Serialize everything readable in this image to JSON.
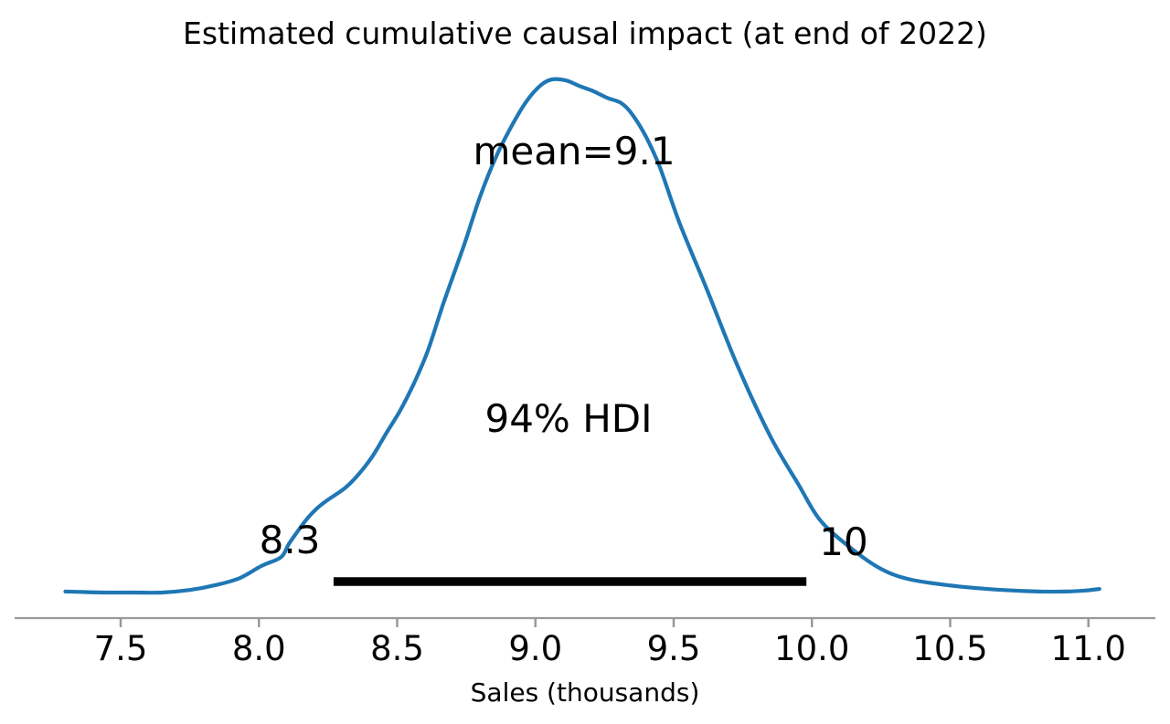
{
  "header": {
    "title": "Estimated cumulative causal impact (at end of 2022)"
  },
  "annotations": {
    "mean_label": "mean=9.1",
    "hdi_prob_label": "94% HDI",
    "hdi_lower_label": "8.3",
    "hdi_upper_label": "10"
  },
  "axis": {
    "xlabel": "Sales (thousands)"
  },
  "chart_data": {
    "type": "line",
    "subtype": "kde-posterior-density",
    "title": "Estimated cumulative causal impact (at end of 2022)",
    "xlabel": "Sales (thousands)",
    "ylabel": "",
    "grid": false,
    "legend": "none",
    "xlim": [
      7.11,
      11.23
    ],
    "x_tick_values": [
      7.5,
      8.0,
      8.5,
      9.0,
      9.5,
      10.0,
      10.5,
      11.0
    ],
    "x_tick_labels": [
      "7.5",
      "8.0",
      "8.5",
      "9.0",
      "9.5",
      "10.0",
      "10.5",
      "11.0"
    ],
    "mean": 9.1,
    "mean_label": "mean=9.1",
    "hdi_prob": 0.94,
    "hdi_prob_label": "94% HDI",
    "hdi_interval": [
      8.3,
      10
    ],
    "hdi_lower_label": "8.3",
    "hdi_upper_label": "10",
    "hdi_bar_span": [
      8.27,
      9.98
    ],
    "line_color": "#1f77b4",
    "hdi_bar_color": "#000000",
    "axis_color": "#999999",
    "text_color": "#000000",
    "curve": {
      "x": [
        7.3,
        7.36,
        7.45,
        7.55,
        7.65,
        7.75,
        7.84,
        7.93,
        8.01,
        8.08,
        8.11,
        8.17,
        8.21,
        8.25,
        8.31,
        8.36,
        8.41,
        8.46,
        8.51,
        8.56,
        8.61,
        8.67,
        8.74,
        8.8,
        8.86,
        8.92,
        8.97,
        9.02,
        9.06,
        9.11,
        9.16,
        9.21,
        9.26,
        9.31,
        9.35,
        9.4,
        9.45,
        9.52,
        9.62,
        9.73,
        9.85,
        9.95,
        10.03,
        10.14,
        10.25,
        10.36,
        10.53,
        10.69,
        10.82,
        10.92,
        10.99,
        11.04
      ],
      "density_normalized": [
        0.002,
        0.001,
        0.0,
        0.0,
        0.0,
        0.005,
        0.014,
        0.028,
        0.052,
        0.069,
        0.096,
        0.141,
        0.164,
        0.181,
        0.203,
        0.23,
        0.265,
        0.31,
        0.354,
        0.407,
        0.47,
        0.568,
        0.674,
        0.772,
        0.852,
        0.915,
        0.959,
        0.989,
        1.0,
        0.998,
        0.987,
        0.977,
        0.964,
        0.954,
        0.932,
        0.888,
        0.829,
        0.722,
        0.591,
        0.443,
        0.304,
        0.212,
        0.141,
        0.087,
        0.046,
        0.025,
        0.012,
        0.005,
        0.002,
        0.002,
        0.004,
        0.007
      ]
    }
  }
}
